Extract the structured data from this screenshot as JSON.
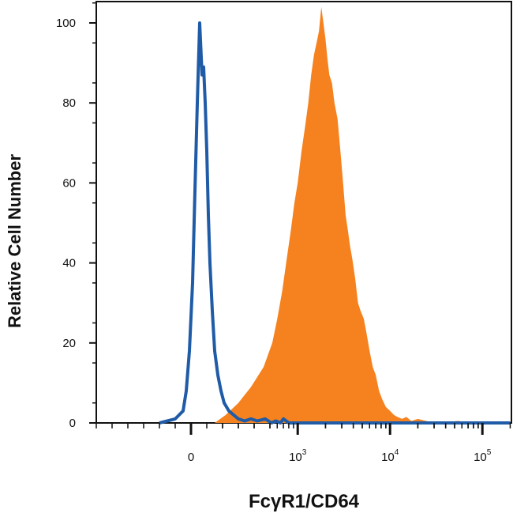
{
  "chart_data": {
    "type": "area",
    "xlabel": "FcγR1/CD64",
    "ylabel": "Relative Cell Number",
    "x_scale": "biexponential",
    "xlim": [
      -1000,
      200000
    ],
    "ylim": [
      0,
      105
    ],
    "yticks": [
      {
        "value": 0,
        "label": "0"
      },
      {
        "value": 20,
        "label": "20"
      },
      {
        "value": 40,
        "label": "40"
      },
      {
        "value": 60,
        "label": "60"
      },
      {
        "value": 80,
        "label": "80"
      },
      {
        "value": 100,
        "label": "100"
      }
    ],
    "xticks": [
      {
        "value": 0,
        "base": "0",
        "exp": ""
      },
      {
        "value": 1000,
        "base": "10",
        "exp": "3"
      },
      {
        "value": 10000,
        "base": "10",
        "exp": "4"
      },
      {
        "value": 100000,
        "base": "10",
        "exp": "5"
      }
    ],
    "grid": false,
    "series": [
      {
        "color": "#f5821f",
        "style": "filled",
        "x": [
          150,
          220,
          300,
          380,
          460,
          530,
          600,
          680,
          760,
          840,
          920,
          1000,
          1100,
          1200,
          1300,
          1400,
          1500,
          1600,
          1700,
          1800,
          1900,
          2000,
          2100,
          2200,
          2350,
          2500,
          2700,
          2900,
          3100,
          3300,
          3500,
          3700,
          3900,
          4200,
          4500,
          4800,
          5200,
          5600,
          6000,
          6500,
          7000,
          7600,
          8200,
          9000,
          10000,
          11000,
          12000,
          13500,
          15000,
          17000,
          20000,
          30000,
          55000,
          70000
        ],
        "y": [
          0,
          2,
          5,
          9,
          14,
          20,
          26,
          33,
          41,
          48,
          55,
          60,
          68,
          74,
          80,
          87,
          92,
          95,
          98,
          104,
          100,
          96,
          91,
          87,
          85,
          80,
          76,
          68,
          60,
          52,
          48,
          44,
          41,
          36,
          30,
          28,
          26,
          22,
          18,
          14,
          12,
          8,
          6,
          4,
          3,
          2,
          1.5,
          1,
          1.5,
          0.5,
          1,
          0,
          0.5,
          0
        ]
      },
      {
        "color": "#1f5ba6",
        "style": "line",
        "x": [
          -200,
          -100,
          -50,
          -30,
          -10,
          10,
          25,
          40,
          55,
          70,
          80,
          90,
          100,
          110,
          120,
          135,
          150,
          170,
          190,
          210,
          240,
          270,
          300,
          340,
          380,
          420,
          470,
          520,
          580,
          650,
          700,
          800,
          1000,
          3000,
          200000
        ],
        "y": [
          0,
          1,
          3,
          8,
          18,
          35,
          58,
          80,
          100,
          87,
          89,
          80,
          68,
          52,
          40,
          28,
          18,
          12,
          8,
          5,
          3,
          2,
          1,
          0.5,
          1,
          0.5,
          1,
          0,
          0.5,
          0,
          1,
          0,
          0,
          0,
          0
        ]
      }
    ]
  }
}
